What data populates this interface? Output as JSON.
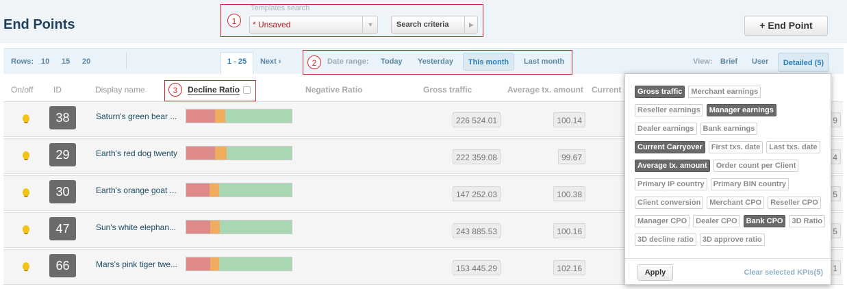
{
  "header": {
    "title": "End Points",
    "templates": {
      "label": "Templates search",
      "selected": "* Unsaved",
      "criteria_button": "Search criteria"
    },
    "add_button": "+ End Point"
  },
  "annotations": [
    "1",
    "2",
    "3"
  ],
  "toolbar": {
    "rows_label": "Rows:",
    "row_options": [
      "10",
      "15",
      "20"
    ],
    "page": "1 - 25",
    "next": "Next ›",
    "date_label": "Date range:",
    "date_options": [
      "Today",
      "Yesterday",
      "This month",
      "Last month"
    ],
    "date_active": 2,
    "view_label": "View:",
    "view_options": [
      "Brief",
      "User",
      "Detailed (5)"
    ],
    "view_active": 2
  },
  "columns": [
    "On/off",
    "ID",
    "Display name",
    "Decline Ratio",
    "Negative Ratio",
    "Gross traffic",
    "Average tx. amount",
    "Current"
  ],
  "sorted_column": 3,
  "rows": [
    {
      "id": 38,
      "name": "Saturn's green bear ...",
      "decline_ratio": {
        "red": 27,
        "orange": 10,
        "green": 63
      },
      "gross_traffic": "226 524.01",
      "avg_amount": "100.14",
      "edge": "9"
    },
    {
      "id": 29,
      "name": "Earth's red dog twenty",
      "decline_ratio": {
        "red": 27,
        "orange": 11,
        "green": 62
      },
      "gross_traffic": "222 359.08",
      "avg_amount": "99.67",
      "edge": "4"
    },
    {
      "id": 30,
      "name": "Earth's orange goat ...",
      "decline_ratio": {
        "red": 22,
        "orange": 9,
        "green": 69
      },
      "gross_traffic": "147 252.03",
      "avg_amount": "100.38",
      "edge": "5"
    },
    {
      "id": 47,
      "name": "Sun's white elephan...",
      "decline_ratio": {
        "red": 23,
        "orange": 9,
        "green": 68
      },
      "gross_traffic": "243 885.53",
      "avg_amount": "100.16",
      "edge": "5"
    },
    {
      "id": 66,
      "name": "Mars's pink tiger twe...",
      "decline_ratio": {
        "red": 23,
        "orange": 8,
        "green": 69
      },
      "gross_traffic": "153 445.29",
      "avg_amount": "102.16",
      "edge": "1"
    }
  ],
  "kpi_panel": {
    "kpi_rows": [
      [
        {
          "label": "Gross traffic",
          "selected": true
        },
        {
          "label": "Merchant earnings",
          "selected": false
        }
      ],
      [
        {
          "label": "Reseller earnings",
          "selected": false
        },
        {
          "label": "Manager earnings",
          "selected": true
        }
      ],
      [
        {
          "label": "Dealer earnings",
          "selected": false
        },
        {
          "label": "Bank earnings",
          "selected": false
        }
      ],
      [
        {
          "label": "Current Carryover",
          "selected": true
        },
        {
          "label": "First txs. date",
          "selected": false
        },
        {
          "label": "Last txs. date",
          "selected": false
        }
      ],
      [
        {
          "label": "Average tx. amount",
          "selected": true
        },
        {
          "label": "Order count per Client",
          "selected": false
        }
      ],
      [
        {
          "label": "Primary IP country",
          "selected": false
        },
        {
          "label": "Primary BIN country",
          "selected": false
        }
      ],
      [
        {
          "label": "Client conversion",
          "selected": false
        },
        {
          "label": "Merchant CPO",
          "selected": false
        },
        {
          "label": "Reseller CPO",
          "selected": false
        }
      ],
      [
        {
          "label": "Manager CPO",
          "selected": false
        },
        {
          "label": "Dealer CPO",
          "selected": false
        },
        {
          "label": "Bank CPO",
          "selected": true
        },
        {
          "label": "3D Ratio",
          "selected": false
        }
      ],
      [
        {
          "label": "3D decline ratio",
          "selected": false
        },
        {
          "label": "3D approve ratio",
          "selected": false
        }
      ]
    ],
    "apply": "Apply",
    "clear": "Clear selected KPIs(5)"
  }
}
